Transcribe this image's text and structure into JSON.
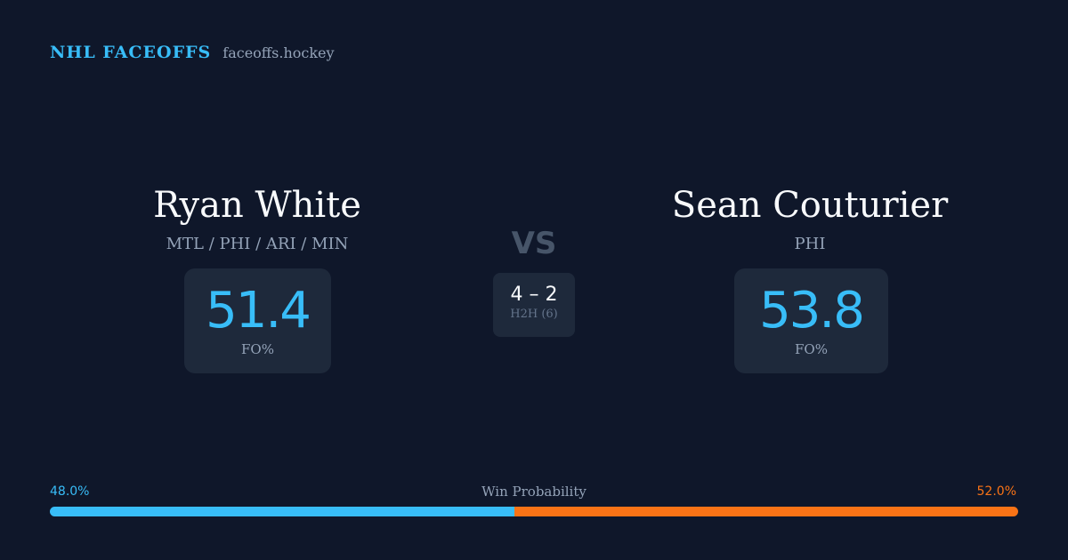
{
  "brand": {
    "name": "NHL FACEOFFS",
    "site": "faceoffs.hockey"
  },
  "player1": {
    "name": "Ryan White",
    "teams": "MTL / PHI / ARI / MIN",
    "fo_pct": "51.4",
    "fo_label": "FO%"
  },
  "player2": {
    "name": "Sean Couturier",
    "teams": "PHI",
    "fo_pct": "53.8",
    "fo_label": "FO%"
  },
  "versus": "VS",
  "h2h": {
    "score": "4 – 2",
    "label": "H2H (6)"
  },
  "win_probability": {
    "title": "Win Probability",
    "left_label": "48.0%",
    "right_label": "52.0%",
    "left_value": 48.0,
    "right_value": 52.0,
    "left_color": "#38bdf8",
    "right_color": "#f97316"
  }
}
